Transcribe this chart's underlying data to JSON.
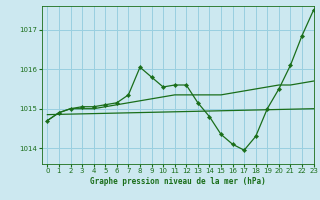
{
  "title": "Graphe pression niveau de la mer (hPa)",
  "bg_color": "#cce8f0",
  "grid_color": "#99cfe0",
  "line_color": "#1a6e1a",
  "xlim": [
    -0.5,
    23
  ],
  "ylim": [
    1013.6,
    1017.6
  ],
  "yticks": [
    1014,
    1015,
    1016,
    1017
  ],
  "xticks": [
    0,
    1,
    2,
    3,
    4,
    5,
    6,
    7,
    8,
    9,
    10,
    11,
    12,
    13,
    14,
    15,
    16,
    17,
    18,
    19,
    20,
    21,
    22,
    23
  ],
  "series_flat": {
    "x": [
      0,
      23
    ],
    "y": [
      1014.85,
      1015.0
    ]
  },
  "series_main": {
    "x": [
      0,
      1,
      2,
      3,
      4,
      5,
      6,
      7,
      8,
      9,
      10,
      11,
      12,
      13,
      14,
      15,
      16,
      17,
      18,
      19,
      20,
      21,
      22,
      23
    ],
    "y": [
      1014.7,
      1014.9,
      1015.0,
      1015.05,
      1015.05,
      1015.1,
      1015.15,
      1015.35,
      1016.05,
      1015.8,
      1015.55,
      1015.6,
      1015.6,
      1015.15,
      1014.8,
      1014.35,
      1014.1,
      1013.95,
      1014.3,
      1015.0,
      1015.5,
      1016.1,
      1016.85,
      1017.5
    ]
  },
  "series_smooth": {
    "x": [
      0,
      1,
      2,
      3,
      4,
      5,
      6,
      7,
      8,
      9,
      10,
      11,
      12,
      13,
      14,
      15,
      16,
      17,
      18,
      19,
      20,
      21,
      22,
      23
    ],
    "y": [
      1014.7,
      1014.9,
      1015.0,
      1015.0,
      1015.0,
      1015.05,
      1015.1,
      1015.15,
      1015.2,
      1015.25,
      1015.3,
      1015.35,
      1015.35,
      1015.35,
      1015.35,
      1015.35,
      1015.4,
      1015.45,
      1015.5,
      1015.55,
      1015.6,
      1015.6,
      1015.65,
      1015.7
    ]
  }
}
